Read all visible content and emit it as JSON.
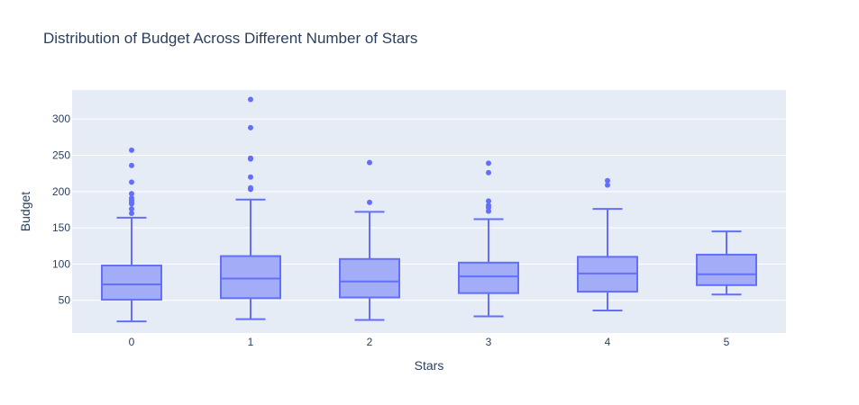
{
  "chart_data": {
    "type": "box",
    "title": "Distribution of Budget Across Different Number of Stars",
    "xlabel": "Stars",
    "ylabel": "Budget",
    "categories": [
      "0",
      "1",
      "2",
      "3",
      "4",
      "5"
    ],
    "y_ticks": [
      50,
      100,
      150,
      200,
      250,
      300
    ],
    "ylim": [
      5,
      340
    ],
    "grid": true,
    "colors": {
      "box_fill": "#a3adf7",
      "box_line": "#636efa",
      "plot_bg": "#e5ecf6",
      "grid": "#ffffff"
    },
    "boxes": [
      {
        "category": "0",
        "lowerfence": 21,
        "q1": 51,
        "median": 72,
        "q3": 98,
        "upperfence": 164,
        "outliers": [
          170,
          176,
          183,
          185,
          188,
          191,
          197,
          213,
          236,
          257
        ]
      },
      {
        "category": "1",
        "lowerfence": 24,
        "q1": 53,
        "median": 80,
        "q3": 111,
        "upperfence": 189,
        "outliers": [
          203,
          205,
          220,
          245,
          246,
          288,
          327
        ]
      },
      {
        "category": "2",
        "lowerfence": 23,
        "q1": 54,
        "median": 76,
        "q3": 107,
        "upperfence": 172,
        "outliers": [
          185,
          240
        ]
      },
      {
        "category": "3",
        "lowerfence": 28,
        "q1": 60,
        "median": 83,
        "q3": 102,
        "upperfence": 162,
        "outliers": [
          173,
          178,
          181,
          187,
          226,
          239
        ]
      },
      {
        "category": "4",
        "lowerfence": 36,
        "q1": 62,
        "median": 87,
        "q3": 110,
        "upperfence": 176,
        "outliers": [
          209,
          215
        ]
      },
      {
        "category": "5",
        "lowerfence": 58,
        "q1": 71,
        "median": 86,
        "q3": 113,
        "upperfence": 145,
        "outliers": []
      }
    ]
  }
}
